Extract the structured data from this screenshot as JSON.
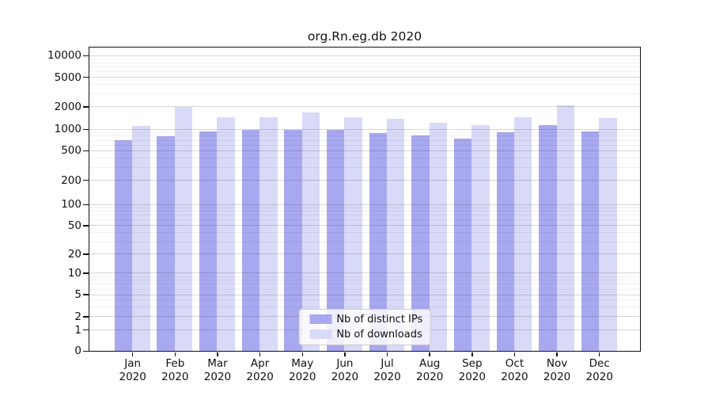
{
  "title": "org.Rn.eg.db 2020",
  "legend": [
    {
      "label": "Nb of distinct IPs",
      "color": "#a8a8f0"
    },
    {
      "label": "Nb of downloads",
      "color": "#d9d9f8"
    }
  ],
  "y_axis": {
    "tick_labels": [
      "0",
      "1",
      "2",
      "5",
      "10",
      "20",
      "50",
      "100",
      "200",
      "500",
      "1000",
      "2000",
      "5000",
      "10000"
    ]
  },
  "x_axis": {
    "months": [
      "Jan",
      "Feb",
      "Mar",
      "Apr",
      "May",
      "Jun",
      "Jul",
      "Aug",
      "Sep",
      "Oct",
      "Nov",
      "Dec"
    ],
    "year_label": "2020"
  },
  "chart_data": {
    "type": "bar",
    "title": "org.Rn.eg.db 2020",
    "categories": [
      "Jan 2020",
      "Feb 2020",
      "Mar 2020",
      "Apr 2020",
      "May 2020",
      "Jun 2020",
      "Jul 2020",
      "Aug 2020",
      "Sep 2020",
      "Oct 2020",
      "Nov 2020",
      "Dec 2020"
    ],
    "series": [
      {
        "name": "Nb of distinct IPs",
        "color": "#a8a8f0",
        "values": [
          700,
          790,
          920,
          975,
          965,
          975,
          865,
          800,
          725,
          890,
          1120,
          910
        ]
      },
      {
        "name": "Nb of downloads",
        "color": "#d9d9f8",
        "values": [
          1100,
          1980,
          1420,
          1430,
          1650,
          1440,
          1370,
          1200,
          1130,
          1420,
          2060,
          1410
        ]
      }
    ],
    "yscale": "log-like (0,1,2,5 ... 10000)",
    "ylim": [
      0,
      11500
    ],
    "y_ticks": [
      0,
      1,
      2,
      5,
      10,
      20,
      50,
      100,
      200,
      500,
      1000,
      2000,
      5000,
      10000
    ],
    "grid": true,
    "legend_position": "lower center"
  }
}
